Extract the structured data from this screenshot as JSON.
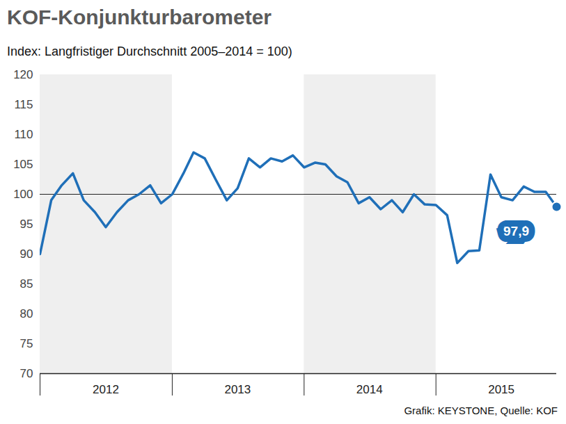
{
  "chart_data": {
    "type": "line",
    "title": "KOF-Konjunkturbarometer",
    "subtitle": "Index: Langfristiger Durchschnitt 2005–2014 = 100)",
    "caption": "Grafik: KEYSTONE, Quelle: KOF",
    "x": [
      "2012-01",
      "2012-02",
      "2012-03",
      "2012-04",
      "2012-05",
      "2012-06",
      "2012-07",
      "2012-08",
      "2012-09",
      "2012-10",
      "2012-11",
      "2012-12",
      "2013-01",
      "2013-02",
      "2013-03",
      "2013-04",
      "2013-05",
      "2013-06",
      "2013-07",
      "2013-08",
      "2013-09",
      "2013-10",
      "2013-11",
      "2013-12",
      "2014-01",
      "2014-02",
      "2014-03",
      "2014-04",
      "2014-05",
      "2014-06",
      "2014-07",
      "2014-08",
      "2014-09",
      "2014-10",
      "2014-11",
      "2014-12",
      "2015-01",
      "2015-02",
      "2015-03",
      "2015-04",
      "2015-05",
      "2015-06",
      "2015-07",
      "2015-08",
      "2015-09",
      "2015-10",
      "2015-11",
      "2015-12"
    ],
    "values": [
      90,
      99,
      101.5,
      103.5,
      99,
      97,
      94.5,
      97,
      99,
      100,
      101.5,
      98.5,
      100,
      103.5,
      107,
      106,
      102.5,
      99,
      101,
      106,
      104.5,
      106,
      105.5,
      106.5,
      104.5,
      105.3,
      105,
      103,
      102,
      98.5,
      99.5,
      97.5,
      99,
      97,
      100,
      98.3,
      98.2,
      96.5,
      88.5,
      90.5,
      90.6,
      103.3,
      99.5,
      99,
      101.3,
      100.4,
      100.4,
      97.9
    ],
    "color": "#1f6fb8",
    "xlim": [
      "2012-01",
      "2015-12"
    ],
    "xticks": [
      {
        "value": "2012-07",
        "label": "2012"
      },
      {
        "value": "2013-07",
        "label": "2013"
      },
      {
        "value": "2014-07",
        "label": "2014"
      },
      {
        "value": "2015-07",
        "label": "2015"
      }
    ],
    "ylim": [
      70,
      120
    ],
    "yticks": [
      70,
      75,
      80,
      85,
      90,
      95,
      100,
      105,
      110,
      115,
      120
    ],
    "reference_line": 100,
    "annotations": [
      {
        "x": "2015-12",
        "y": 97.9,
        "label": "97,9"
      }
    ],
    "grid": false
  }
}
